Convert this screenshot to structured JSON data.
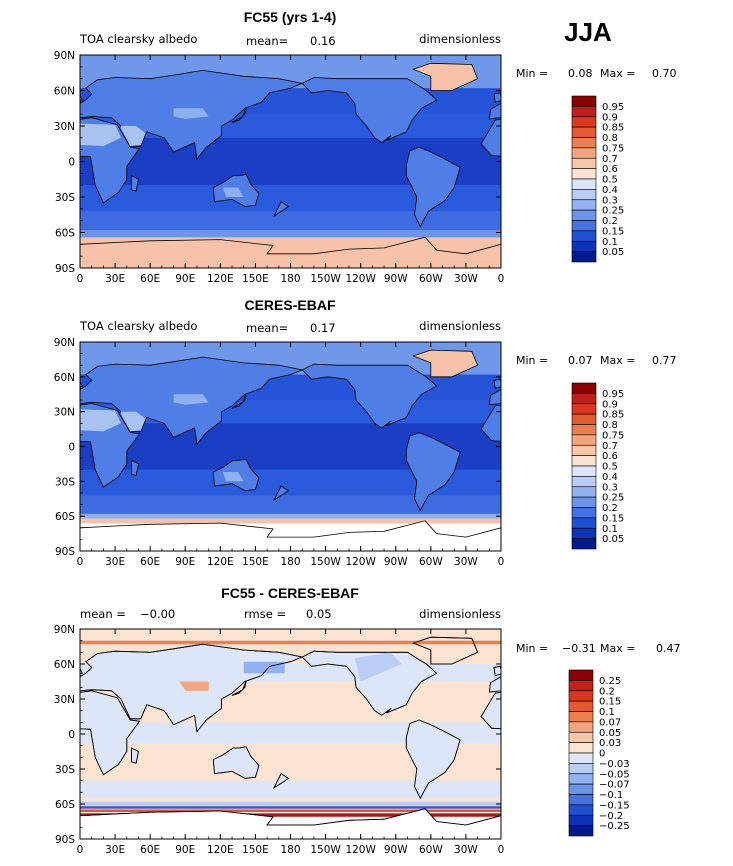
{
  "season": "JJA",
  "units": "dimensionless",
  "x_tick_labels": [
    "0",
    "30E",
    "60E",
    "90E",
    "120E",
    "150E",
    "180",
    "150W",
    "120W",
    "90W",
    "60W",
    "30W",
    "0"
  ],
  "y_tick_labels": [
    "90N",
    "60N",
    "30N",
    "0",
    "30S",
    "60S",
    "90S"
  ],
  "colors": {
    "deep_ocean": "#1a3fc4",
    "ocean": "#2554d8",
    "land": "#4f7fe6",
    "desert": "#a9c3f1",
    "ice": "#f7c3a8",
    "diff_neutral": "#fbe3d2",
    "diff_pos": "#e2572f",
    "diff_neg": "#2f55d5"
  },
  "chart_data": [
    {
      "type": "heatmap",
      "title": "FC55 (yrs 1-4)",
      "variable": "TOA clearsky albedo",
      "mean_label": "mean=",
      "mean_value": "0.16",
      "units": "dimensionless",
      "min_label": "Min =",
      "min_value": "0.08",
      "max_label": "Max =",
      "max_value": "0.70",
      "xlim": [
        0,
        360
      ],
      "ylim": [
        -90,
        90
      ],
      "colorbar": {
        "levels": [
          "0.95",
          "0.9",
          "0.85",
          "0.8",
          "0.75",
          "0.7",
          "0.6",
          "0.5",
          "0.4",
          "0.3",
          "0.25",
          "0.2",
          "0.15",
          "0.1",
          "0.05"
        ],
        "colors": [
          "#8b0000",
          "#c0201a",
          "#d9381f",
          "#e35a30",
          "#ec7f4f",
          "#f4a57d",
          "#f8c6a9",
          "#fbe3d2",
          "#dce6f8",
          "#b9cdf5",
          "#93b2f0",
          "#6b93ea",
          "#4571e2",
          "#1f4fd3",
          "#0d33b8",
          "#001a8c"
        ]
      }
    },
    {
      "type": "heatmap",
      "title": "CERES-EBAF",
      "variable": "TOA clearsky albedo",
      "mean_label": "mean=",
      "mean_value": "0.17",
      "units": "dimensionless",
      "min_label": "Min =",
      "min_value": "0.07",
      "max_label": "Max =",
      "max_value": "0.77",
      "xlim": [
        0,
        360
      ],
      "ylim": [
        -90,
        90
      ],
      "colorbar": {
        "levels": [
          "0.95",
          "0.9",
          "0.85",
          "0.8",
          "0.75",
          "0.7",
          "0.6",
          "0.5",
          "0.4",
          "0.3",
          "0.25",
          "0.2",
          "0.15",
          "0.1",
          "0.05"
        ],
        "colors": [
          "#8b0000",
          "#c0201a",
          "#d9381f",
          "#e35a30",
          "#ec7f4f",
          "#f4a57d",
          "#f8c6a9",
          "#fbe3d2",
          "#dce6f8",
          "#b9cdf5",
          "#93b2f0",
          "#6b93ea",
          "#4571e2",
          "#1f4fd3",
          "#0d33b8",
          "#001a8c"
        ]
      }
    },
    {
      "type": "heatmap",
      "title": "FC55 - CERES-EBAF",
      "mean_label": "mean =",
      "mean_value": "−0.00",
      "rmse_label": "rmse =",
      "rmse_value": "0.05",
      "units": "dimensionless",
      "min_label": "Min =",
      "min_value": "−0.31",
      "max_label": "Max =",
      "max_value": "0.47",
      "xlim": [
        0,
        360
      ],
      "ylim": [
        -90,
        90
      ],
      "colorbar": {
        "levels": [
          "0.25",
          "0.2",
          "0.15",
          "0.1",
          "0.07",
          "0.05",
          "0.03",
          "0",
          "−0.03",
          "−0.05",
          "−0.07",
          "−0.1",
          "−0.15",
          "−0.2",
          "−0.25"
        ],
        "colors": [
          "#8b0000",
          "#c0201a",
          "#d9381f",
          "#e35a30",
          "#ec7f4f",
          "#f4a57d",
          "#f8c6a9",
          "#fbe3d2",
          "#dce6f8",
          "#b9cdf5",
          "#93b2f0",
          "#6b93ea",
          "#4571e2",
          "#1f4fd3",
          "#0d33b8",
          "#001a8c"
        ]
      }
    }
  ]
}
